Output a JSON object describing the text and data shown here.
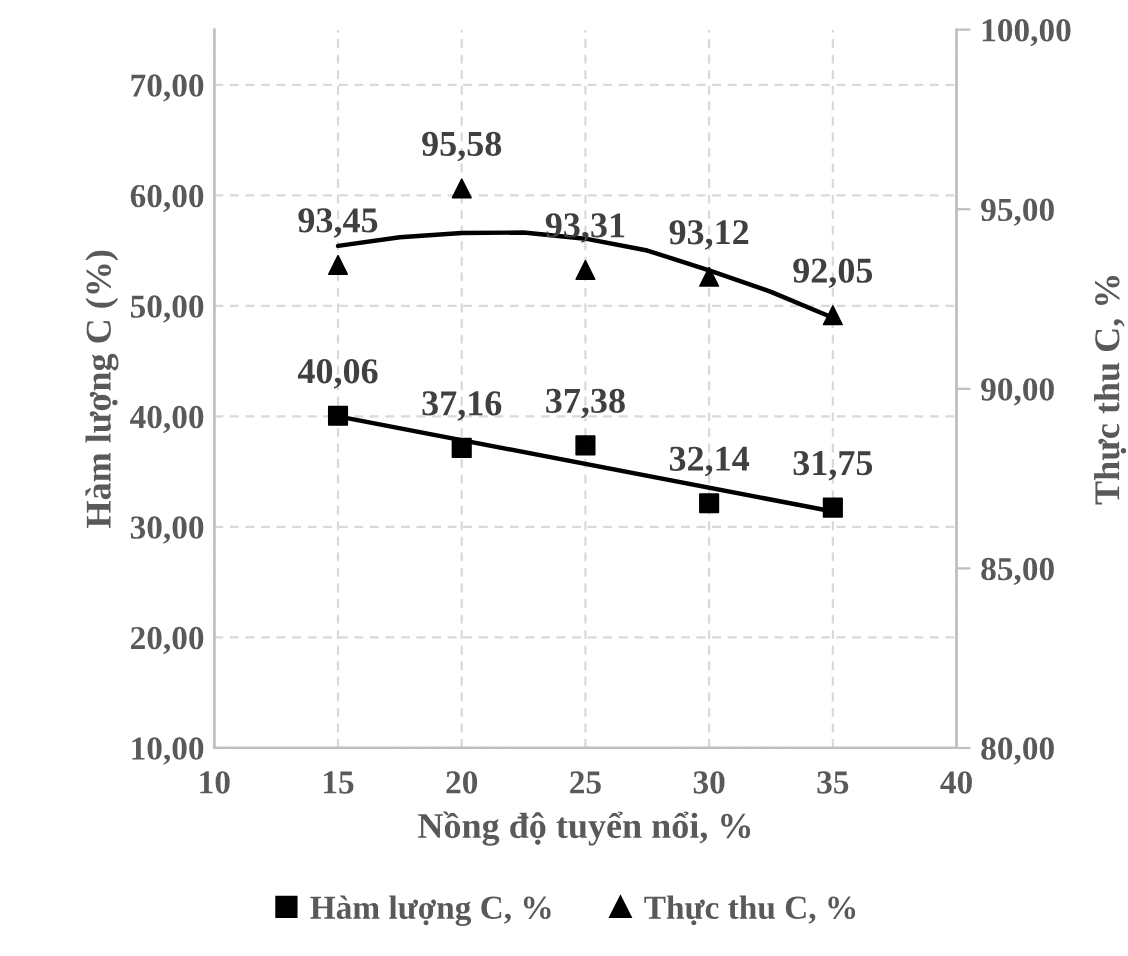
{
  "chart_data": {
    "type": "scatter",
    "xlabel": "Nồng độ tuyển nổi, %",
    "ylabel": "Hàm lượng C (%)",
    "y2label": "Thực thu C, %",
    "xlim": [
      10,
      40
    ],
    "xticks": [
      10,
      15,
      20,
      25,
      30,
      35,
      40
    ],
    "ylim": [
      10,
      75
    ],
    "yticks": [
      {
        "value": 10,
        "label": "10,00"
      },
      {
        "value": 20,
        "label": "20,00"
      },
      {
        "value": 30,
        "label": "30,00"
      },
      {
        "value": 40,
        "label": "40,00"
      },
      {
        "value": 50,
        "label": "50,00"
      },
      {
        "value": 60,
        "label": "60,00"
      },
      {
        "value": 70,
        "label": "70,00"
      }
    ],
    "y2lim": [
      80,
      100
    ],
    "y2ticks": [
      {
        "value": 80,
        "label": "80,00"
      },
      {
        "value": 85,
        "label": "85,00"
      },
      {
        "value": 90,
        "label": "90,00"
      },
      {
        "value": 95,
        "label": "95,00"
      },
      {
        "value": 100,
        "label": "100,00"
      }
    ],
    "grid": true,
    "legend": "bottom",
    "series": [
      {
        "name": "Hàm lượng C, %",
        "marker": "square",
        "color": "#000000",
        "x": [
          15,
          20,
          25,
          30,
          35
        ],
        "values": [
          40.06,
          37.16,
          37.38,
          32.14,
          31.75
        ],
        "value_labels": [
          "40,06",
          "37,16",
          "37,38",
          "32,14",
          "31,75"
        ]
      },
      {
        "name": "Thực thu C, %",
        "marker": "triangle",
        "axis": "y2",
        "color": "#000000",
        "x": [
          15,
          20,
          25,
          30,
          35
        ],
        "values": [
          93.45,
          95.58,
          93.31,
          93.12,
          92.05
        ],
        "value_labels": [
          "93,45",
          "95,58",
          "93,31",
          "93,12",
          "92,05"
        ]
      },
      {
        "type": "line",
        "marker": "none",
        "color": "#000000",
        "x": [
          15,
          35
        ],
        "values": [
          40.0,
          31.4
        ]
      },
      {
        "type": "line",
        "marker": "none",
        "axis": "y2",
        "color": "#000000",
        "x": [
          15,
          17.5,
          20,
          22.5,
          25,
          27.5,
          30,
          32.5,
          35
        ],
        "values": [
          93.98,
          94.22,
          94.34,
          94.35,
          94.18,
          93.85,
          93.3,
          92.7,
          91.98
        ]
      }
    ]
  }
}
